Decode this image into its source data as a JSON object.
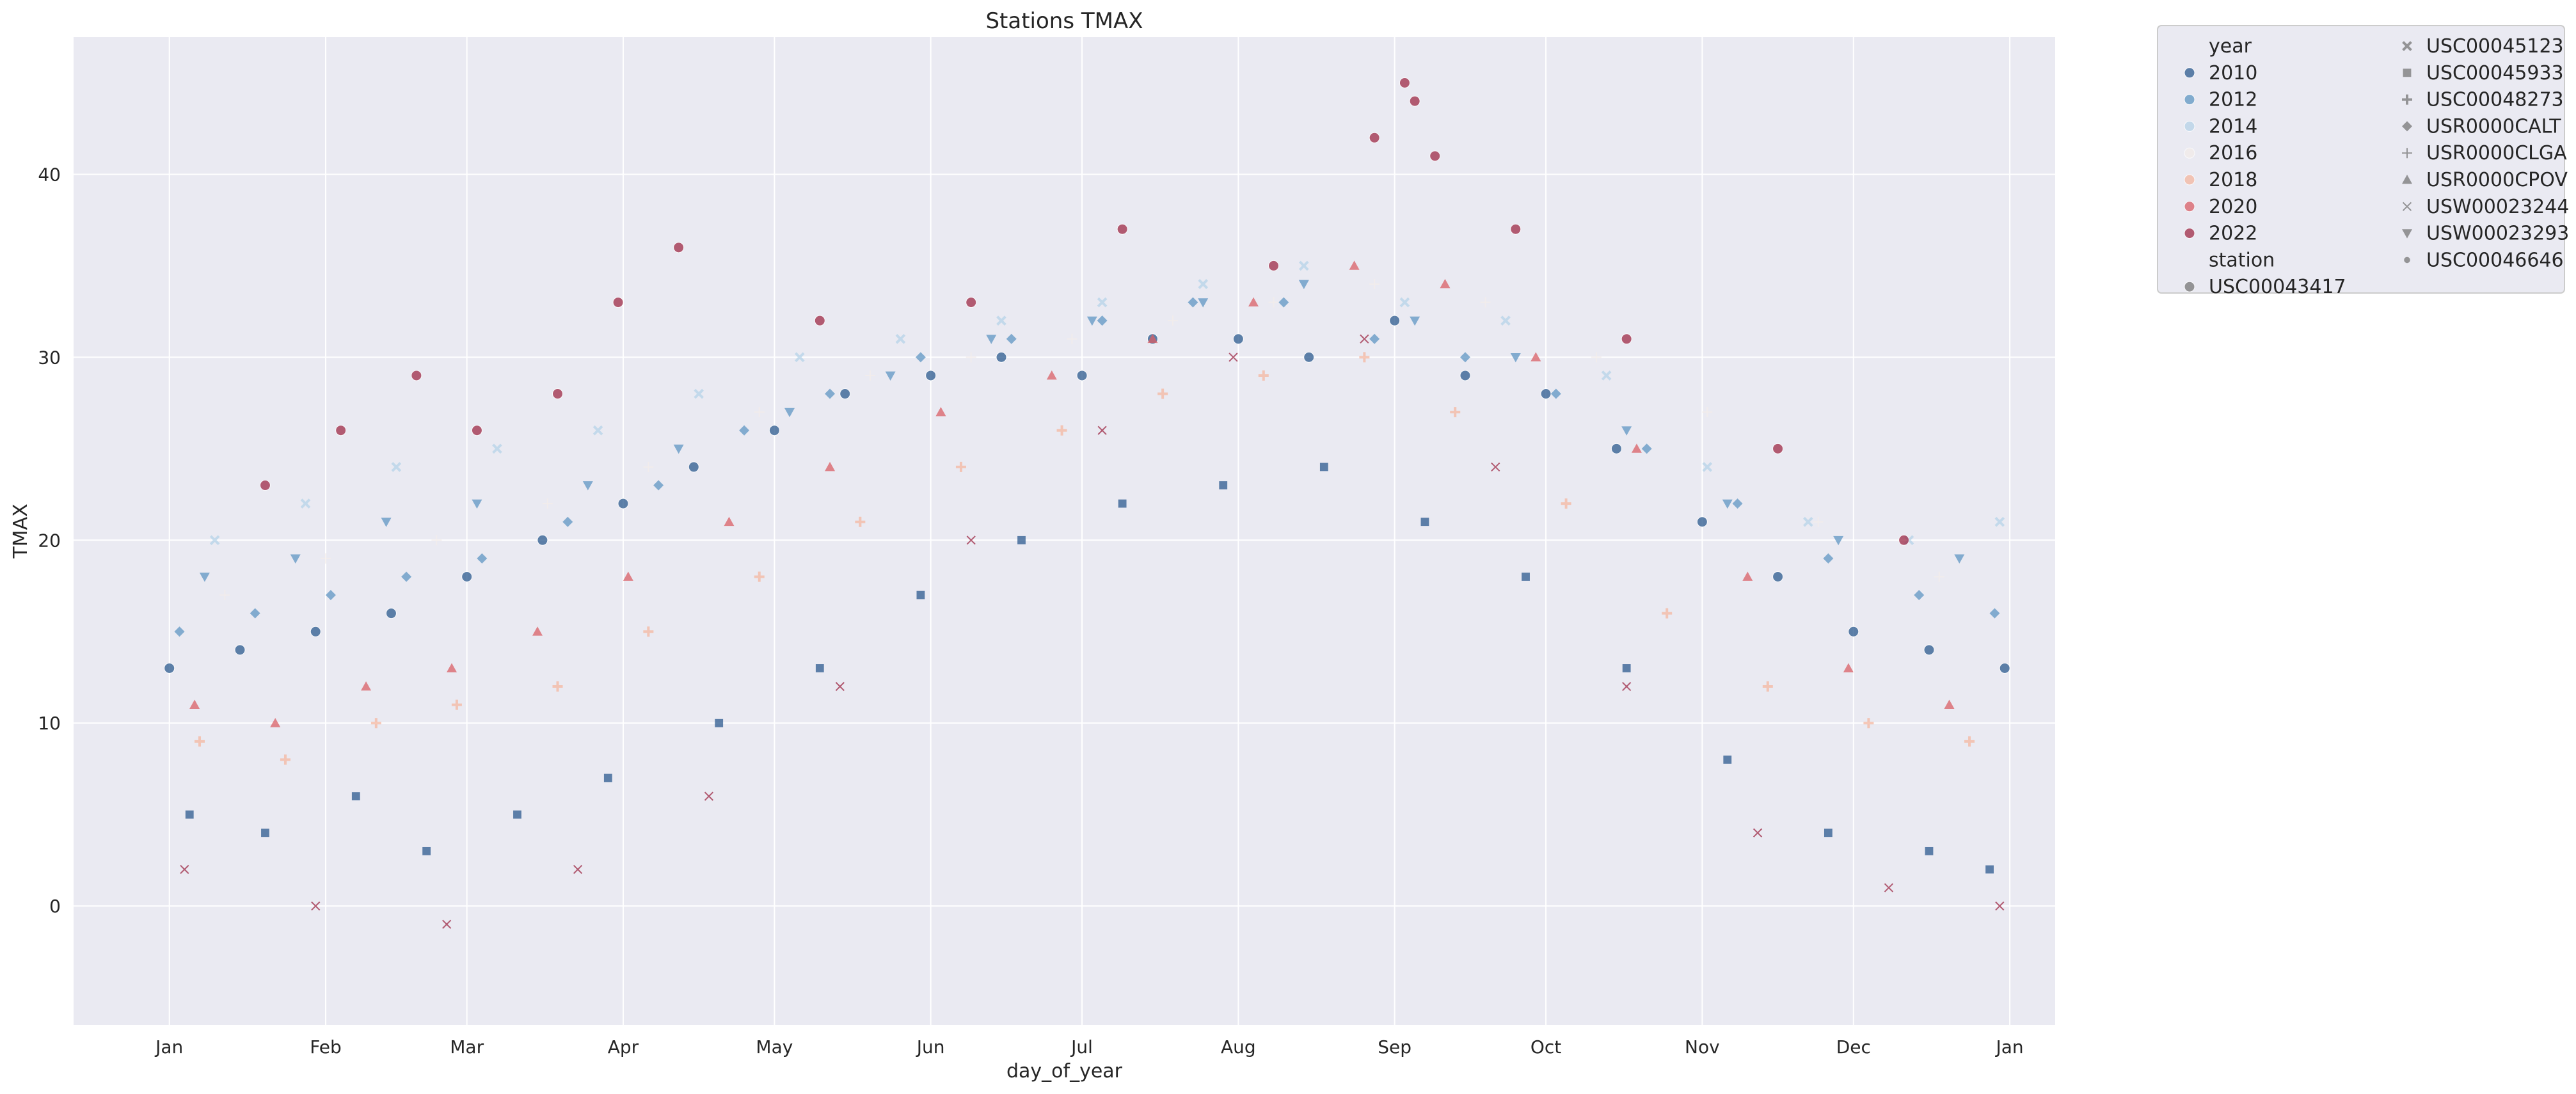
{
  "chart_data": {
    "type": "scatter",
    "title": "Stations TMAX",
    "xlabel": "day_of_year",
    "ylabel": "TMAX",
    "x_unit": "day_of_year",
    "xlim": [
      -18,
      375
    ],
    "ylim": [
      -6.5,
      47.5
    ],
    "x_ticks": [
      {
        "label": "Jan",
        "value": 1
      },
      {
        "label": "Feb",
        "value": 32
      },
      {
        "label": "Mar",
        "value": 60
      },
      {
        "label": "Apr",
        "value": 91
      },
      {
        "label": "May",
        "value": 121
      },
      {
        "label": "Jun",
        "value": 152
      },
      {
        "label": "Jul",
        "value": 182
      },
      {
        "label": "Aug",
        "value": 213
      },
      {
        "label": "Sep",
        "value": 244
      },
      {
        "label": "Oct",
        "value": 274
      },
      {
        "label": "Nov",
        "value": 305
      },
      {
        "label": "Dec",
        "value": 335
      },
      {
        "label": "Jan",
        "value": 366
      }
    ],
    "y_ticks": [
      0,
      10,
      20,
      30,
      40
    ],
    "grid": true,
    "legend_placement": "outside upper right",
    "background_color": "#eaeaf2",
    "hue": {
      "title": "year",
      "entries": [
        {
          "name": "2010",
          "color": "#2c5a8f"
        },
        {
          "name": "2012",
          "color": "#5f96c3"
        },
        {
          "name": "2014",
          "color": "#b6d3e8"
        },
        {
          "name": "2016",
          "color": "#f3ece9"
        },
        {
          "name": "2018",
          "color": "#f4b7a0"
        },
        {
          "name": "2020",
          "color": "#d95f66"
        },
        {
          "name": "2022",
          "color": "#9e2a46"
        }
      ]
    },
    "style": {
      "title": "station",
      "entries": [
        {
          "name": "USC00043417",
          "marker": "circle"
        },
        {
          "name": "USC00045123",
          "marker": "x"
        },
        {
          "name": "USC00045933",
          "marker": "square"
        },
        {
          "name": "USC00048273",
          "marker": "plus"
        },
        {
          "name": "USR0000CALT",
          "marker": "diamond"
        },
        {
          "name": "USR0000CLGA",
          "marker": "thin-plus"
        },
        {
          "name": "USR0000CPOV",
          "marker": "triangle-up"
        },
        {
          "name": "USW00023244",
          "marker": "thin-x"
        },
        {
          "name": "USW00023293",
          "marker": "triangle-down"
        },
        {
          "name": "USC00046646",
          "marker": "small-circle"
        }
      ]
    },
    "series": [
      {
        "year": "2010",
        "station": "USC00043417",
        "x": [
          1,
          15,
          30,
          45,
          60,
          75,
          91,
          105,
          121,
          135,
          152,
          166,
          182,
          196,
          213,
          227,
          244,
          258,
          274,
          288,
          305,
          320,
          335,
          350,
          365
        ],
        "y": [
          13,
          14,
          15,
          16,
          18,
          20,
          22,
          24,
          26,
          28,
          29,
          30,
          29,
          31,
          31,
          30,
          32,
          29,
          28,
          25,
          21,
          18,
          15,
          14,
          13
        ]
      },
      {
        "year": "2010",
        "station": "USC00045933",
        "x": [
          5,
          20,
          38,
          52,
          70,
          88,
          110,
          130,
          150,
          170,
          190,
          210,
          230,
          250,
          270,
          290,
          310,
          330,
          350,
          362
        ],
        "y": [
          5,
          4,
          6,
          3,
          5,
          7,
          10,
          13,
          17,
          20,
          22,
          23,
          24,
          21,
          18,
          13,
          8,
          4,
          3,
          2
        ]
      },
      {
        "year": "2012",
        "station": "USR0000CALT",
        "x": [
          3,
          18,
          33,
          48,
          63,
          80,
          98,
          115,
          132,
          150,
          168,
          186,
          204,
          222,
          240,
          258,
          276,
          294,
          312,
          330,
          348,
          363
        ],
        "y": [
          15,
          16,
          17,
          18,
          19,
          21,
          23,
          26,
          28,
          30,
          31,
          32,
          33,
          33,
          31,
          30,
          28,
          25,
          22,
          19,
          17,
          16
        ]
      },
      {
        "year": "2012",
        "station": "USW00023293",
        "x": [
          8,
          26,
          44,
          62,
          84,
          102,
          124,
          144,
          164,
          184,
          206,
          226,
          248,
          268,
          290,
          310,
          332,
          356
        ],
        "y": [
          18,
          19,
          21,
          22,
          23,
          25,
          27,
          29,
          31,
          32,
          33,
          34,
          32,
          30,
          26,
          22,
          20,
          19
        ]
      },
      {
        "year": "2014",
        "station": "USC00045123",
        "x": [
          10,
          28,
          46,
          66,
          86,
          106,
          126,
          146,
          166,
          186,
          206,
          226,
          246,
          266,
          286,
          306,
          326,
          346,
          364
        ],
        "y": [
          20,
          22,
          24,
          25,
          26,
          28,
          30,
          31,
          32,
          33,
          34,
          35,
          33,
          32,
          29,
          24,
          21,
          20,
          21
        ]
      },
      {
        "year": "2016",
        "station": "USR0000CLGA",
        "x": [
          12,
          32,
          54,
          76,
          96,
          118,
          140,
          160,
          180,
          200,
          220,
          240,
          262,
          284,
          306,
          328,
          352
        ],
        "y": [
          17,
          19,
          20,
          22,
          24,
          27,
          29,
          30,
          31,
          32,
          33,
          34,
          33,
          30,
          27,
          21,
          18
        ]
      },
      {
        "year": "2018",
        "station": "USC00048273",
        "x": [
          7,
          24,
          42,
          58,
          78,
          96,
          118,
          138,
          158,
          178,
          198,
          218,
          238,
          256,
          278,
          298,
          318,
          338,
          358
        ],
        "y": [
          9,
          8,
          10,
          11,
          12,
          15,
          18,
          21,
          24,
          26,
          28,
          29,
          30,
          27,
          22,
          16,
          12,
          10,
          9
        ]
      },
      {
        "year": "2020",
        "station": "USR0000CPOV",
        "x": [
          6,
          22,
          40,
          57,
          74,
          92,
          112,
          132,
          154,
          176,
          196,
          216,
          236,
          254,
          272,
          292,
          314,
          334,
          354
        ],
        "y": [
          11,
          10,
          12,
          13,
          15,
          18,
          21,
          24,
          27,
          29,
          31,
          33,
          35,
          34,
          30,
          25,
          18,
          13,
          11
        ]
      },
      {
        "year": "2022",
        "station": "USC00043417",
        "x": [
          20,
          35,
          50,
          62,
          78,
          90,
          102,
          130,
          160,
          190,
          220,
          240,
          246,
          248,
          252,
          268,
          290,
          320,
          345
        ],
        "y": [
          23,
          26,
          29,
          26,
          28,
          33,
          36,
          32,
          33,
          37,
          35,
          42,
          45,
          44,
          41,
          37,
          31,
          25,
          20
        ]
      },
      {
        "year": "2022",
        "station": "USW00023244",
        "x": [
          4,
          30,
          56,
          82,
          108,
          134,
          160,
          186,
          212,
          238,
          264,
          290,
          316,
          342,
          364
        ],
        "y": [
          2,
          0,
          -1,
          2,
          6,
          12,
          20,
          26,
          30,
          31,
          24,
          12,
          4,
          1,
          0
        ]
      }
    ]
  }
}
